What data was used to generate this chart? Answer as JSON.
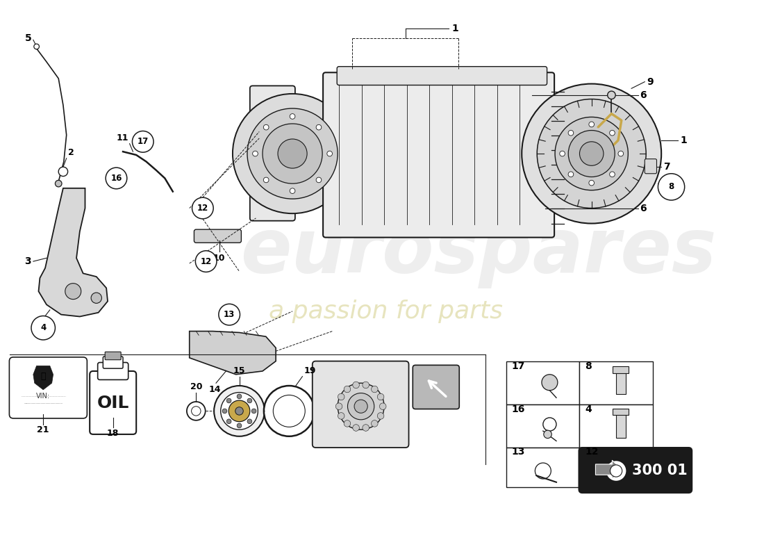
{
  "background_color": "#ffffff",
  "watermark_text": "eurospares",
  "watermark_text2": "a passion for parts",
  "diagram_code": "300 01",
  "line_color": "#1a1a1a",
  "accent_color": "#c8a84b",
  "light_gray": "#d8d8d8",
  "mid_gray": "#a0a0a0",
  "box_fill": "#f0f0f0",
  "wm_color": "#c8c8c8",
  "wm_color2": "#d4cf8a"
}
